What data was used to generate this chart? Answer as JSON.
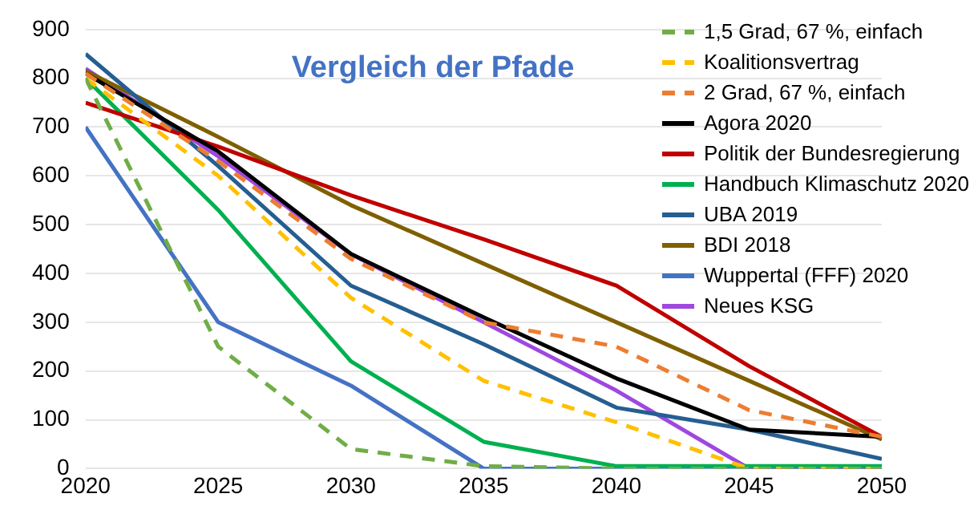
{
  "chart_data": {
    "type": "line",
    "title": "Vergleich der Pfade",
    "x": [
      2020,
      2025,
      2030,
      2035,
      2040,
      2045,
      2050
    ],
    "xlim": [
      2020,
      2050
    ],
    "xticks": [
      2020,
      2025,
      2030,
      2035,
      2040,
      2045,
      2050
    ],
    "ylim": [
      0,
      900
    ],
    "yticks": [
      0,
      100,
      200,
      300,
      400,
      500,
      600,
      700,
      800,
      900
    ],
    "grid": "y",
    "legend": "top right",
    "marker": "none",
    "series": [
      {
        "name": "1,5 Grad, 67 %, einfach",
        "color": "#70ad47",
        "line_style": "dashed",
        "values": [
          800,
          250,
          40,
          5,
          0,
          0,
          0
        ]
      },
      {
        "name": "Koalitionsvertrag",
        "color": "#ffc000",
        "line_style": "dashed",
        "values": [
          800,
          600,
          350,
          180,
          95,
          0,
          0
        ]
      },
      {
        "name": "2 Grad, 67 %, einfach",
        "color": "#ed7d31",
        "line_style": "dashed",
        "values": [
          810,
          630,
          430,
          300,
          250,
          120,
          65
        ]
      },
      {
        "name": "Agora 2020",
        "color": "#000000",
        "line_style": "solid",
        "values": [
          810,
          650,
          440,
          310,
          185,
          80,
          65
        ]
      },
      {
        "name": "Politik der Bundesregierung",
        "color": "#c00000",
        "line_style": "solid",
        "values": [
          750,
          660,
          560,
          470,
          375,
          210,
          65
        ]
      },
      {
        "name": "Handbuch Klimaschutz 2020",
        "color": "#00b050",
        "line_style": "solid",
        "values": [
          800,
          530,
          220,
          55,
          5,
          5,
          5
        ]
      },
      {
        "name": "UBA 2019",
        "color": "#255e91",
        "line_style": "solid",
        "values": [
          850,
          620,
          375,
          255,
          125,
          80,
          20
        ]
      },
      {
        "name": "BDI 2018",
        "color": "#7f6000",
        "line_style": "solid",
        "values": [
          815,
          680,
          540,
          420,
          300,
          180,
          60
        ]
      },
      {
        "name": "Wuppertal (FFF) 2020",
        "color": "#4472c4",
        "line_style": "solid",
        "values": [
          700,
          300,
          170,
          0,
          0,
          0,
          0
        ]
      },
      {
        "name": "Neues KSG",
        "color": "#9e48e0",
        "line_style": "solid",
        "values": [
          820,
          640,
          440,
          300,
          160,
          0,
          0
        ]
      }
    ]
  }
}
